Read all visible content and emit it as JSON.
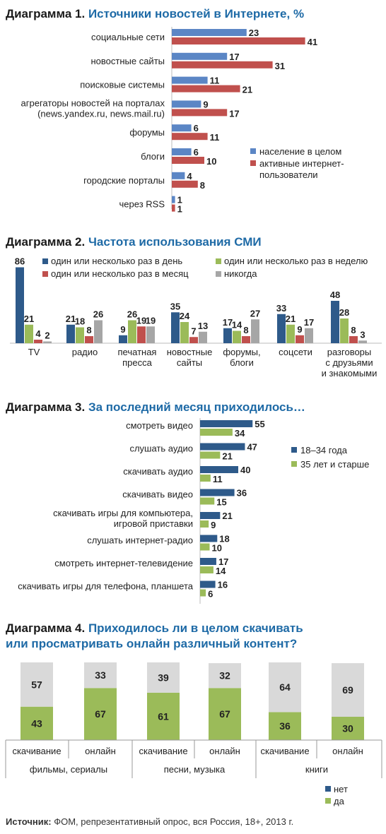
{
  "colors": {
    "blue": "#5b86c5",
    "red": "#c0504d",
    "darkblue": "#2e5a8a",
    "green": "#9bbb59",
    "gray": "#a6a6a6",
    "lightgray": "#d9d9d9",
    "title_blue": "#1e6aa6"
  },
  "chart_data": [
    {
      "type": "bar",
      "orientation": "horizontal",
      "title_prefix": "Диаграмма 1.",
      "title": "Источники новостей в Интернете, %",
      "categories": [
        [
          "социальные сети"
        ],
        [
          "новостные сайты"
        ],
        [
          "поисковые системы"
        ],
        [
          "агрегаторы новостей на порталах",
          "(news.yandex.ru, news.mail.ru)"
        ],
        [
          "форумы"
        ],
        [
          "блоги"
        ],
        [
          "городские порталы"
        ],
        [
          "через RSS"
        ]
      ],
      "series": [
        {
          "name": "население в целом",
          "values": [
            23,
            17,
            11,
            9,
            6,
            6,
            4,
            1
          ]
        },
        {
          "name": "активные интернет- пользователи",
          "values": [
            41,
            31,
            21,
            17,
            11,
            10,
            8,
            1
          ]
        }
      ],
      "legend": [
        [
          "население в целом"
        ],
        [
          "активные интернет-",
          "пользователи"
        ]
      ]
    },
    {
      "type": "bar",
      "orientation": "vertical",
      "title_prefix": "Диаграмма 2.",
      "title": "Частота использования СМИ",
      "categories": [
        [
          "TV"
        ],
        [
          "радио"
        ],
        [
          "печатная",
          "пресса"
        ],
        [
          "новостные",
          "сайты"
        ],
        [
          "форумы,",
          "блоги"
        ],
        [
          "соцсети"
        ],
        [
          "разговоры",
          "с друзьями",
          "и знакомыми"
        ]
      ],
      "series": [
        {
          "name": "один или несколько раз в день",
          "values": [
            86,
            21,
            9,
            35,
            17,
            33,
            48
          ]
        },
        {
          "name": "один или несколько раз в неделю",
          "values": [
            21,
            18,
            26,
            24,
            14,
            21,
            28
          ]
        },
        {
          "name": "один или несколько раз в месяц",
          "values": [
            4,
            8,
            19,
            7,
            8,
            9,
            8
          ]
        },
        {
          "name": "никогда",
          "values": [
            2,
            26,
            19,
            13,
            27,
            17,
            3
          ]
        }
      ]
    },
    {
      "type": "bar",
      "orientation": "horizontal",
      "title_prefix": "Диаграмма 3.",
      "title": "За последний месяц приходилось…",
      "categories": [
        [
          "смотреть видео"
        ],
        [
          "слушать аудио"
        ],
        [
          "скачивать аудио"
        ],
        [
          "скачивать видео"
        ],
        [
          "скачивать игры для компьютера,",
          "игровой приставки"
        ],
        [
          "слушать интернет-радио"
        ],
        [
          "смотреть интернет-телевидение"
        ],
        [
          "скачивать игры для телефона, планшета"
        ]
      ],
      "series": [
        {
          "name": "18–34 года",
          "values": [
            55,
            47,
            40,
            36,
            21,
            18,
            17,
            16
          ]
        },
        {
          "name": "35 лет и старше",
          "values": [
            34,
            21,
            11,
            15,
            9,
            10,
            14,
            6
          ]
        }
      ]
    },
    {
      "type": "bar",
      "orientation": "vertical",
      "stacked": true,
      "title_prefix": "Диаграмма 4.",
      "title_lines": [
        "Приходилось ли в целом скачивать",
        "или просматривать онлайн различный контент?"
      ],
      "categories": [
        "скачивание",
        "онлайн",
        "скачивание",
        "онлайн",
        "скачивание",
        "онлайн"
      ],
      "groups": [
        "фильмы, сериалы",
        "песни, музыка",
        "книги"
      ],
      "series": [
        {
          "name": "да",
          "values": [
            43,
            67,
            61,
            67,
            36,
            30
          ]
        },
        {
          "name": "нет",
          "values": [
            57,
            33,
            39,
            32,
            64,
            69
          ]
        }
      ],
      "legend": [
        "нет",
        "да"
      ]
    }
  ],
  "source": {
    "label": "Источник:",
    "text": " ФОМ, репрезентативный опрос, вся Россия, 18+, 2013 г."
  }
}
